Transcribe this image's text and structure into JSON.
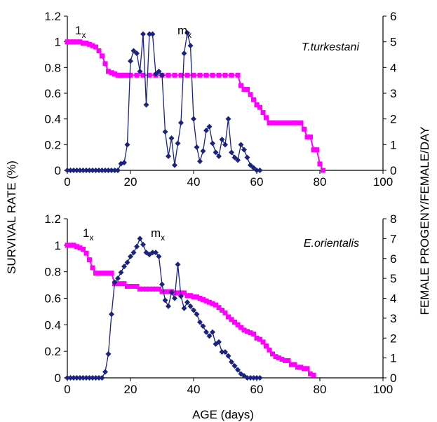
{
  "figure": {
    "xlabel": "AGE (days)",
    "ylabel_left": "SURVIVAL RATE (%)",
    "ylabel_right": "FEMALE PROGENY/FEMALE/DAY"
  },
  "colors": {
    "lx": "#ff00ff",
    "mx": "#1a237e",
    "axis": "#000000"
  },
  "chart_data": [
    {
      "type": "line",
      "title": "T.turkestani",
      "xlim": [
        0,
        100
      ],
      "ylim_left": [
        0,
        1.2
      ],
      "ylim_right": [
        0,
        6
      ],
      "x_ticks": [
        "0",
        "20",
        "40",
        "60",
        "80",
        "100"
      ],
      "y_ticks_left": [
        "0",
        "0.2",
        "0.4",
        "0.6",
        "0.8",
        "1",
        "1.2"
      ],
      "y_ticks_right": [
        "0",
        "1",
        "2",
        "3",
        "4",
        "5",
        "6"
      ],
      "annotations": {
        "lx": "1",
        "mx": "m",
        "subscript": "x"
      },
      "series": [
        {
          "name": "lx",
          "axis": "left",
          "marker": "square",
          "color": "#ff00ff",
          "points": [
            [
              0,
              1
            ],
            [
              1,
              1
            ],
            [
              2,
              1
            ],
            [
              3,
              1
            ],
            [
              4,
              1
            ],
            [
              5,
              0.99
            ],
            [
              6,
              0.99
            ],
            [
              7,
              0.98
            ],
            [
              8,
              0.97
            ],
            [
              9,
              0.96
            ],
            [
              10,
              0.93
            ],
            [
              11,
              0.89
            ],
            [
              12,
              0.83
            ],
            [
              13,
              0.77
            ],
            [
              14,
              0.76
            ],
            [
              15,
              0.75
            ],
            [
              16,
              0.74
            ],
            [
              17,
              0.74
            ],
            [
              18,
              0.74
            ],
            [
              19,
              0.74
            ],
            [
              20,
              0.74
            ],
            [
              22,
              0.74
            ],
            [
              24,
              0.74
            ],
            [
              26,
              0.74
            ],
            [
              28,
              0.74
            ],
            [
              30,
              0.74
            ],
            [
              32,
              0.74
            ],
            [
              34,
              0.74
            ],
            [
              36,
              0.74
            ],
            [
              38,
              0.74
            ],
            [
              40,
              0.74
            ],
            [
              42,
              0.74
            ],
            [
              44,
              0.74
            ],
            [
              46,
              0.74
            ],
            [
              48,
              0.74
            ],
            [
              50,
              0.74
            ],
            [
              52,
              0.74
            ],
            [
              54,
              0.74
            ],
            [
              55,
              0.66
            ],
            [
              56,
              0.63
            ],
            [
              57,
              0.63
            ],
            [
              58,
              0.59
            ],
            [
              59,
              0.55
            ],
            [
              60,
              0.51
            ],
            [
              61,
              0.49
            ],
            [
              62,
              0.45
            ],
            [
              63,
              0.41
            ],
            [
              64,
              0.37
            ],
            [
              65,
              0.37
            ],
            [
              66,
              0.37
            ],
            [
              67,
              0.37
            ],
            [
              68,
              0.37
            ],
            [
              69,
              0.37
            ],
            [
              70,
              0.37
            ],
            [
              71,
              0.37
            ],
            [
              72,
              0.37
            ],
            [
              73,
              0.37
            ],
            [
              74,
              0.37
            ],
            [
              75,
              0.32
            ],
            [
              76,
              0.26
            ],
            [
              77,
              0.26
            ],
            [
              78,
              0.16
            ],
            [
              79,
              0.16
            ],
            [
              80,
              0.05
            ],
            [
              81,
              0.0
            ]
          ]
        },
        {
          "name": "mx",
          "axis": "right",
          "marker": "diamond",
          "color": "#1a237e",
          "points": [
            [
              0,
              0
            ],
            [
              1,
              0
            ],
            [
              2,
              0
            ],
            [
              3,
              0
            ],
            [
              4,
              0
            ],
            [
              5,
              0
            ],
            [
              6,
              0
            ],
            [
              7,
              0
            ],
            [
              8,
              0
            ],
            [
              9,
              0
            ],
            [
              10,
              0
            ],
            [
              11,
              0
            ],
            [
              12,
              0
            ],
            [
              13,
              0
            ],
            [
              14,
              0
            ],
            [
              15,
              0
            ],
            [
              16,
              0
            ],
            [
              17,
              0.26
            ],
            [
              18,
              0.3
            ],
            [
              19,
              1.0
            ],
            [
              20,
              4.25
            ],
            [
              21,
              4.65
            ],
            [
              22,
              4.55
            ],
            [
              23,
              3.85
            ],
            [
              24,
              5.3
            ],
            [
              25,
              2.55
            ],
            [
              26,
              5.3
            ],
            [
              27,
              5.3
            ],
            [
              28,
              3.75
            ],
            [
              29,
              3.85
            ],
            [
              30,
              3.7
            ],
            [
              31,
              1.5
            ],
            [
              32,
              0.55
            ],
            [
              33,
              1.25
            ],
            [
              34,
              0.2
            ],
            [
              35,
              1.05
            ],
            [
              36,
              1.85
            ],
            [
              37,
              4.55
            ],
            [
              38,
              5.35
            ],
            [
              39,
              4.85
            ],
            [
              40,
              2.0
            ],
            [
              41,
              0.9
            ],
            [
              42,
              0.35
            ],
            [
              43,
              0.75
            ],
            [
              44,
              1.55
            ],
            [
              45,
              1.7
            ],
            [
              46,
              1.05
            ],
            [
              47,
              0.7
            ],
            [
              48,
              0.55
            ],
            [
              49,
              1.2
            ],
            [
              50,
              1.0
            ],
            [
              51,
              2.0
            ],
            [
              52,
              0.7
            ],
            [
              53,
              0.5
            ],
            [
              54,
              0.4
            ],
            [
              55,
              1.0
            ],
            [
              56,
              0.8
            ],
            [
              57,
              0.5
            ],
            [
              58,
              0.2
            ],
            [
              59,
              0.1
            ],
            [
              60,
              0
            ],
            [
              61,
              0
            ]
          ]
        }
      ]
    },
    {
      "type": "line",
      "title": "E.orientalis",
      "xlim": [
        0,
        100
      ],
      "ylim_left": [
        0,
        1.2
      ],
      "ylim_right": [
        0,
        8
      ],
      "x_ticks": [
        "0",
        "20",
        "40",
        "60",
        "80",
        "100"
      ],
      "y_ticks_left": [
        "0",
        "0.2",
        "0.4",
        "0.6",
        "0.8",
        "1",
        "1.2"
      ],
      "y_ticks_right": [
        "0",
        "1",
        "2",
        "3",
        "4",
        "5",
        "6",
        "7",
        "8"
      ],
      "annotations": {
        "lx": "1",
        "mx": "m",
        "subscript": "x"
      },
      "series": [
        {
          "name": "lx",
          "axis": "left",
          "marker": "square",
          "color": "#ff00ff",
          "points": [
            [
              0,
              1.0
            ],
            [
              1,
              1.0
            ],
            [
              2,
              1.0
            ],
            [
              3,
              0.99
            ],
            [
              4,
              0.98
            ],
            [
              5,
              0.97
            ],
            [
              6,
              0.94
            ],
            [
              7,
              0.89
            ],
            [
              8,
              0.83
            ],
            [
              9,
              0.79
            ],
            [
              10,
              0.79
            ],
            [
              11,
              0.79
            ],
            [
              12,
              0.79
            ],
            [
              13,
              0.79
            ],
            [
              14,
              0.79
            ],
            [
              15,
              0.71
            ],
            [
              16,
              0.71
            ],
            [
              17,
              0.71
            ],
            [
              18,
              0.71
            ],
            [
              19,
              0.69
            ],
            [
              20,
              0.69
            ],
            [
              21,
              0.69
            ],
            [
              22,
              0.69
            ],
            [
              23,
              0.67
            ],
            [
              24,
              0.67
            ],
            [
              25,
              0.67
            ],
            [
              26,
              0.67
            ],
            [
              27,
              0.67
            ],
            [
              28,
              0.67
            ],
            [
              29,
              0.67
            ],
            [
              30,
              0.65
            ],
            [
              31,
              0.65
            ],
            [
              32,
              0.65
            ],
            [
              33,
              0.65
            ],
            [
              34,
              0.64
            ],
            [
              35,
              0.64
            ],
            [
              36,
              0.64
            ],
            [
              37,
              0.64
            ],
            [
              38,
              0.62
            ],
            [
              39,
              0.62
            ],
            [
              40,
              0.61
            ],
            [
              41,
              0.61
            ],
            [
              42,
              0.6
            ],
            [
              43,
              0.59
            ],
            [
              44,
              0.58
            ],
            [
              45,
              0.57
            ],
            [
              46,
              0.56
            ],
            [
              47,
              0.55
            ],
            [
              48,
              0.53
            ],
            [
              49,
              0.51
            ],
            [
              50,
              0.49
            ],
            [
              51,
              0.46
            ],
            [
              52,
              0.44
            ],
            [
              53,
              0.42
            ],
            [
              54,
              0.4
            ],
            [
              55,
              0.38
            ],
            [
              56,
              0.36
            ],
            [
              57,
              0.35
            ],
            [
              58,
              0.34
            ],
            [
              59,
              0.33
            ],
            [
              60,
              0.3
            ],
            [
              61,
              0.29
            ],
            [
              62,
              0.27
            ],
            [
              63,
              0.24
            ],
            [
              64,
              0.21
            ],
            [
              65,
              0.18
            ],
            [
              66,
              0.16
            ],
            [
              67,
              0.15
            ],
            [
              68,
              0.14
            ],
            [
              69,
              0.13
            ],
            [
              70,
              0.13
            ],
            [
              71,
              0.1
            ],
            [
              72,
              0.1
            ],
            [
              73,
              0.08
            ],
            [
              74,
              0.08
            ],
            [
              75,
              0.07
            ],
            [
              76,
              0.07
            ],
            [
              77,
              0.03
            ],
            [
              78,
              0.02
            ]
          ]
        },
        {
          "name": "mx",
          "axis": "right",
          "marker": "diamond",
          "color": "#1a237e",
          "points": [
            [
              0,
              0
            ],
            [
              1,
              0
            ],
            [
              2,
              0
            ],
            [
              3,
              0
            ],
            [
              4,
              0
            ],
            [
              5,
              0
            ],
            [
              6,
              0
            ],
            [
              7,
              0
            ],
            [
              8,
              0
            ],
            [
              9,
              0
            ],
            [
              10,
              0
            ],
            [
              11,
              0
            ],
            [
              12,
              0.3
            ],
            [
              13,
              1.2
            ],
            [
              14,
              3.2
            ],
            [
              15,
              4.8
            ],
            [
              16,
              5.0
            ],
            [
              17,
              5.3
            ],
            [
              18,
              5.6
            ],
            [
              19,
              5.8
            ],
            [
              20,
              6.1
            ],
            [
              21,
              6.3
            ],
            [
              22,
              6.6
            ],
            [
              23,
              7.0
            ],
            [
              24,
              6.7
            ],
            [
              25,
              6.3
            ],
            [
              26,
              6.2
            ],
            [
              27,
              6.3
            ],
            [
              28,
              6.3
            ],
            [
              29,
              6.1
            ],
            [
              30,
              4.7
            ],
            [
              31,
              3.9
            ],
            [
              32,
              3.6
            ],
            [
              33,
              4.3
            ],
            [
              34,
              4.0
            ],
            [
              35,
              5.7
            ],
            [
              36,
              4.1
            ],
            [
              37,
              3.5
            ],
            [
              38,
              3.8
            ],
            [
              39,
              3.6
            ],
            [
              40,
              3.4
            ],
            [
              41,
              3.2
            ],
            [
              42,
              2.8
            ],
            [
              43,
              2.6
            ],
            [
              44,
              2.3
            ],
            [
              45,
              2.1
            ],
            [
              46,
              2.3
            ],
            [
              47,
              1.7
            ],
            [
              48,
              1.8
            ],
            [
              49,
              1.3
            ],
            [
              50,
              1.3
            ],
            [
              51,
              1.1
            ],
            [
              52,
              0.8
            ],
            [
              53,
              0.6
            ],
            [
              54,
              0.4
            ],
            [
              55,
              0.2
            ],
            [
              56,
              0.1
            ],
            [
              57,
              0
            ],
            [
              58,
              0
            ],
            [
              59,
              0
            ],
            [
              60,
              0
            ],
            [
              61,
              0
            ]
          ]
        }
      ]
    }
  ]
}
